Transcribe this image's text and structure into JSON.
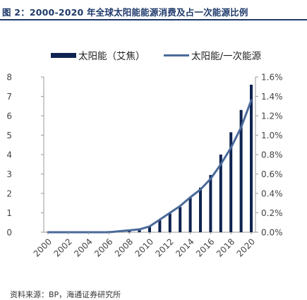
{
  "header": {
    "title": "图 2：2000-2020 年全球太阳能能源消费及占一次能源比例"
  },
  "chart_data": {
    "type": "bar",
    "x": [
      2000,
      2001,
      2002,
      2003,
      2004,
      2005,
      2006,
      2007,
      2008,
      2009,
      2010,
      2011,
      2012,
      2013,
      2014,
      2015,
      2016,
      2017,
      2018,
      2019,
      2020
    ],
    "x_tick_labels": [
      "2000",
      "2002",
      "2004",
      "2006",
      "2008",
      "2010",
      "2012",
      "2014",
      "2016",
      "2018",
      "2020"
    ],
    "series": [
      {
        "name": "太阳能（艾焦）",
        "type": "bar",
        "axis": "left",
        "color": "#0e2350",
        "values": [
          0.01,
          0.01,
          0.02,
          0.02,
          0.03,
          0.04,
          0.06,
          0.08,
          0.13,
          0.2,
          0.33,
          0.63,
          0.97,
          1.3,
          1.8,
          2.3,
          2.95,
          4.0,
          5.15,
          6.3,
          7.6
        ]
      },
      {
        "name": "太阳能/一次能源",
        "type": "line",
        "axis": "right",
        "color": "#4a6a9a",
        "values": [
          0.0,
          0.0,
          0.0,
          0.0,
          0.0,
          0.0,
          0.0,
          0.01,
          0.02,
          0.03,
          0.06,
          0.13,
          0.2,
          0.27,
          0.36,
          0.44,
          0.55,
          0.7,
          0.87,
          1.08,
          1.36
        ]
      }
    ],
    "y_left": {
      "ylim": [
        0,
        8
      ],
      "ticks": [
        "0",
        "1",
        "2",
        "3",
        "4",
        "5",
        "6",
        "7",
        "8"
      ]
    },
    "y_right": {
      "ylim": [
        0,
        1.6
      ],
      "ticks": [
        "0.0%",
        "0.2%",
        "0.4%",
        "0.6%",
        "0.8%",
        "1.0%",
        "1.2%",
        "1.4%",
        "1.6%"
      ]
    },
    "legend_position": "top"
  },
  "footer": {
    "source": "资料来源：BP，海通证券研究所"
  }
}
